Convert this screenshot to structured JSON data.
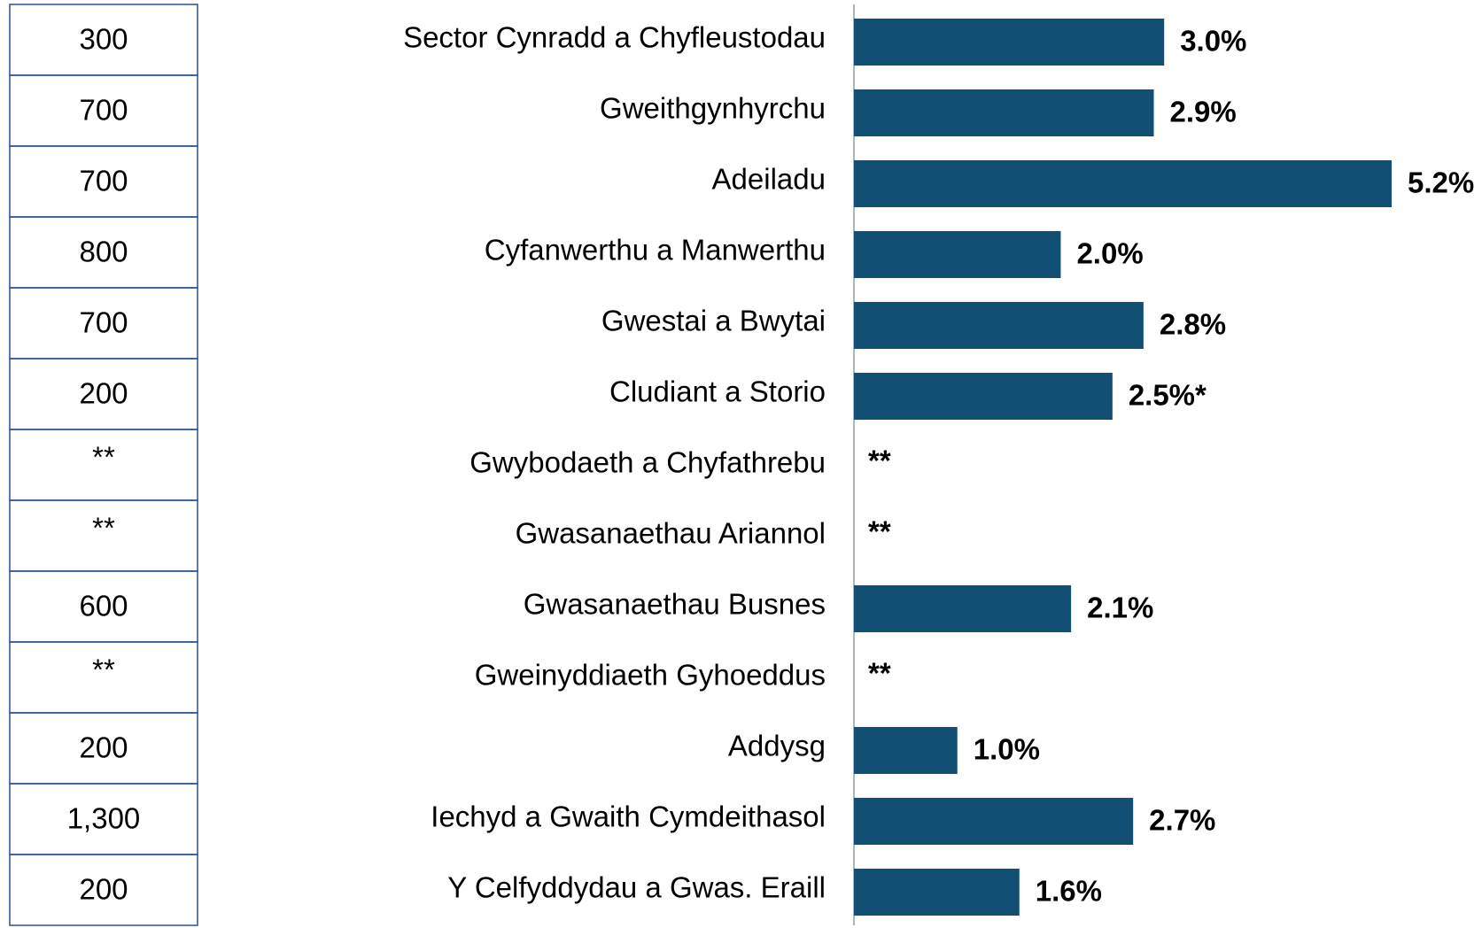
{
  "chart_data": {
    "type": "bar",
    "orientation": "horizontal",
    "color": "#124f75",
    "categories": [
      "Sector Cynradd a Chyfleustodau",
      "Gweithgynhyrchu",
      "Adeiladu",
      "Cyfanwerthu a Manwerthu",
      "Gwestai a Bwytai",
      "Cludiant a Storio",
      "Gwybodaeth a Chyfathrebu",
      "Gwasanaethau Ariannol",
      "Gwasanaethau Busnes",
      "Gweinyddiaeth Gyhoeddus",
      "Addysg",
      "Iechyd a Gwaith Cymdeithasol",
      "Y Celfyddydau a Gwas. Eraill"
    ],
    "values": [
      3.0,
      2.9,
      5.2,
      2.0,
      2.8,
      2.5,
      null,
      null,
      2.1,
      null,
      1.0,
      2.7,
      1.6
    ],
    "value_labels": [
      "3.0%",
      "2.9%",
      "5.2%",
      "2.0%",
      "2.8%",
      "2.5%*",
      "**",
      "**",
      "2.1%",
      "**",
      "1.0%",
      "2.7%",
      "1.6%"
    ]
  },
  "table": {
    "cells": [
      "300",
      "700",
      "700",
      "800",
      "700",
      "200",
      "**",
      "**",
      "600",
      "**",
      "200",
      "1,300",
      "200"
    ]
  }
}
